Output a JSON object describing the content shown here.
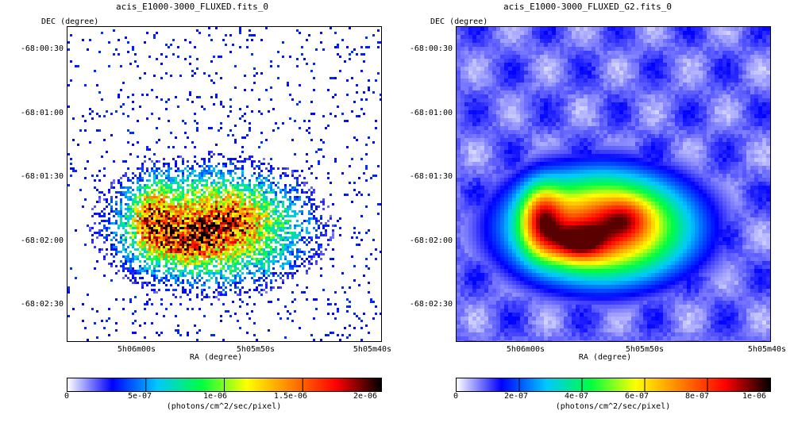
{
  "panels": [
    {
      "title": "acis_E1000-3000_FLUXED.fits_0",
      "y_axis_title": "DEC (degree)",
      "y_ticks": [
        "-68:00:30",
        "-68:01:00",
        "-68:01:30",
        "-68:02:00",
        "-68:02:30"
      ],
      "x_ticks": [
        "5h06m00s",
        "5h05m50s",
        "5h05m40s"
      ],
      "x_axis_title": "RA (degree)",
      "colorbar_ticks": [
        "0",
        "5e-07",
        "1e-06",
        "1.5e-06",
        "2e-06"
      ],
      "colorbar_unit": "(photons/cm^2/sec/pixel)",
      "image_style": "pixelated-counts"
    },
    {
      "title": "acis_E1000-3000_FLUXED_G2.fits_0",
      "y_axis_title": "DEC (degree)",
      "y_ticks": [
        "-68:00:30",
        "-68:01:00",
        "-68:01:30",
        "-68:02:00",
        "-68:02:30"
      ],
      "x_ticks": [
        "5h06m00s",
        "5h05m50s",
        "5h05m40s"
      ],
      "x_axis_title": "RA (degree)",
      "colorbar_ticks": [
        "0",
        "2e-07",
        "4e-07",
        "6e-07",
        "8e-07",
        "1e-06"
      ],
      "colorbar_unit": "(photons/cm^2/sec/pixel)",
      "image_style": "smoothed"
    }
  ],
  "colormap": [
    "#ffffff",
    "#0000ff",
    "#00c8ff",
    "#00ff40",
    "#ffff00",
    "#ff8000",
    "#ff0000",
    "#000000"
  ]
}
